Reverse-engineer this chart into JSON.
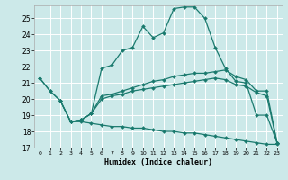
{
  "xlabel": "Humidex (Indice chaleur)",
  "bg_color": "#cce9e9",
  "grid_color": "#ffffff",
  "line_color": "#1a7a6e",
  "xlim": [
    -0.5,
    23.5
  ],
  "ylim": [
    17,
    25.8
  ],
  "yticks": [
    17,
    18,
    19,
    20,
    21,
    22,
    23,
    24,
    25
  ],
  "xticks": [
    0,
    1,
    2,
    3,
    4,
    5,
    6,
    7,
    8,
    9,
    10,
    11,
    12,
    13,
    14,
    15,
    16,
    17,
    18,
    19,
    20,
    21,
    22,
    23
  ],
  "line1_x": [
    0,
    1,
    2,
    3,
    4,
    5,
    6,
    7,
    8,
    9,
    10,
    11,
    12,
    13,
    14,
    15,
    16,
    17,
    18,
    19,
    20,
    21,
    22,
    23
  ],
  "line1_y": [
    21.3,
    20.5,
    19.9,
    18.6,
    18.7,
    19.1,
    21.9,
    22.1,
    23.0,
    23.2,
    24.5,
    23.8,
    24.1,
    25.6,
    25.7,
    25.7,
    25.0,
    23.2,
    21.9,
    21.1,
    21.0,
    19.0,
    19.0,
    17.3
  ],
  "line2_x": [
    0,
    1,
    2,
    3,
    4,
    5,
    6,
    7,
    8,
    9,
    10,
    11,
    12,
    13,
    14,
    15,
    16,
    17,
    18,
    19,
    20,
    21,
    22,
    23
  ],
  "line2_y": [
    21.3,
    20.5,
    19.9,
    18.6,
    18.7,
    19.1,
    20.2,
    20.3,
    20.5,
    20.7,
    20.9,
    21.1,
    21.2,
    21.4,
    21.5,
    21.6,
    21.6,
    21.7,
    21.8,
    21.4,
    21.2,
    20.5,
    20.5,
    17.3
  ],
  "line3_x": [
    2,
    3,
    4,
    5,
    6,
    7,
    8,
    9,
    10,
    11,
    12,
    13,
    14,
    15,
    16,
    17,
    18,
    19,
    20,
    21,
    22,
    23
  ],
  "line3_y": [
    19.9,
    18.6,
    18.7,
    19.1,
    20.0,
    20.2,
    20.3,
    20.5,
    20.6,
    20.7,
    20.8,
    20.9,
    21.0,
    21.1,
    21.2,
    21.3,
    21.2,
    20.9,
    20.8,
    20.4,
    20.2,
    17.3
  ],
  "line4_x": [
    3,
    4,
    5,
    6,
    7,
    8,
    9,
    10,
    11,
    12,
    13,
    14,
    15,
    16,
    17,
    18,
    19,
    20,
    21,
    22,
    23
  ],
  "line4_y": [
    18.6,
    18.6,
    18.5,
    18.4,
    18.3,
    18.3,
    18.2,
    18.2,
    18.1,
    18.0,
    18.0,
    17.9,
    17.9,
    17.8,
    17.7,
    17.6,
    17.5,
    17.4,
    17.3,
    17.2,
    17.2
  ]
}
